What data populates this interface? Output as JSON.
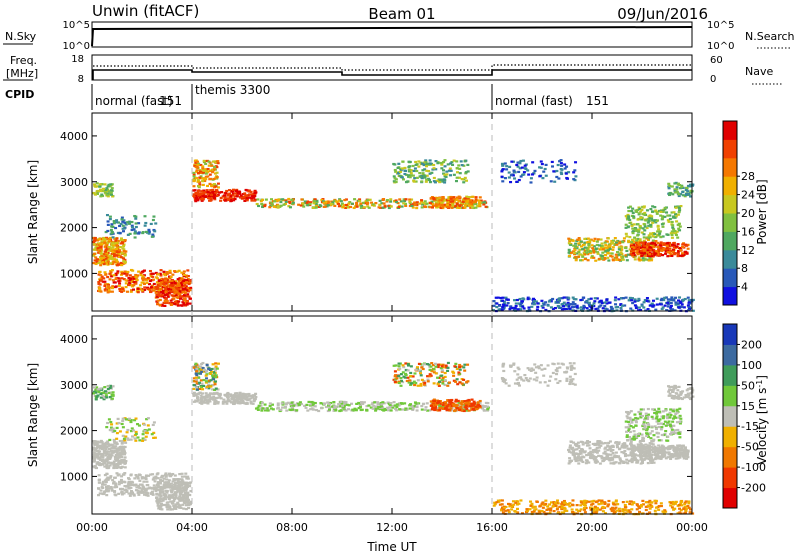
{
  "header": {
    "station": "Unwin (fitACF)",
    "beam": "Beam 01",
    "date": "09/Jun/2016"
  },
  "panels": {
    "nsky": {
      "left_label": "N.Sky",
      "right_label": "N.Search",
      "left_ticks": [
        "10^5",
        "10^0"
      ],
      "right_ticks": [
        "10^5",
        "10^0"
      ]
    },
    "freq": {
      "left_label_line1": "Freq.",
      "left_label_line2": "[MHz]",
      "right_label": "Nave",
      "left_ticks": [
        "18",
        "8"
      ],
      "right_ticks": [
        "60",
        "0"
      ]
    },
    "cpid": {
      "label": "CPID",
      "modes": [
        {
          "text": "normal (fast)",
          "id": "151",
          "start": 0
        },
        {
          "text": "themis 3300",
          "id": "",
          "start": 4
        },
        {
          "text": "normal (fast)",
          "id": "151",
          "start": 16
        }
      ]
    }
  },
  "chart_data": [
    {
      "type": "heatmap",
      "name": "power",
      "ylabel": "Slant Range [km]",
      "ylim": [
        180,
        4500
      ],
      "yticks": [
        "1000",
        "2000",
        "3000",
        "4000"
      ],
      "colorbar_label": "Power [dB]",
      "colorbar_ticks": [
        "4",
        "8",
        "12",
        "16",
        "20",
        "24",
        "28"
      ],
      "colors": [
        "#1010e0",
        "#2858b8",
        "#3a8a9a",
        "#4fa860",
        "#80c040",
        "#c8c820",
        "#f0b000",
        "#f57800",
        "#f04000",
        "#e00000"
      ]
    },
    {
      "type": "heatmap",
      "name": "velocity",
      "ylabel": "Slant Range [km]",
      "ylim": [
        180,
        4500
      ],
      "yticks": [
        "1000",
        "2000",
        "3000",
        "4000"
      ],
      "colorbar_label": "Velocity [m s",
      "colorbar_label_sup": "-1",
      "colorbar_label_end": "]",
      "colorbar_ticks": [
        "200",
        "100",
        "50",
        "15",
        "-15",
        "-50",
        "-100",
        "-200"
      ],
      "colors": [
        "#1838b8",
        "#3c6aa0",
        "#3f9c5a",
        "#70c83a",
        "#bebeb6",
        "#f0b000",
        "#f07800",
        "#f03800",
        "#e00000"
      ]
    }
  ],
  "xaxis": {
    "label": "Time UT",
    "ticks": [
      "00:00",
      "04:00",
      "08:00",
      "12:00",
      "16:00",
      "20:00",
      "00:00"
    ]
  }
}
